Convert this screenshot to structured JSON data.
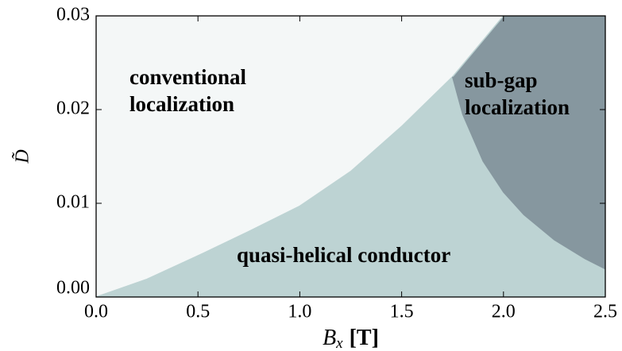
{
  "chart_data": {
    "type": "phase",
    "xlabel": {
      "base": "B",
      "sub": "x",
      "unit": "[T]"
    },
    "ylabel": "D̃",
    "xlim": [
      0,
      2.5
    ],
    "ylim": [
      0,
      0.03
    ],
    "xticks": [
      {
        "value": 0,
        "label": "0.0"
      },
      0.5,
      {
        "value": 1,
        "label": "1.0"
      },
      1.5,
      {
        "value": 2,
        "label": "2.0"
      },
      2.5
    ],
    "yticks": [
      {
        "value": 0,
        "label": "0.00"
      },
      {
        "value": 0.01,
        "label": "0.01"
      },
      {
        "value": 0.02,
        "label": "0.02"
      },
      {
        "value": 0.03,
        "label": "0.03"
      }
    ],
    "boundaries": [
      {
        "x": [
          0,
          0.25,
          0.5,
          0.75,
          1.0,
          1.25,
          1.5,
          1.75,
          2.0
        ],
        "values": [
          0,
          0.0019,
          0.0044,
          0.007,
          0.0097,
          0.0134,
          0.0182,
          0.0235,
          0.03
        ]
      },
      {
        "x": [
          1.75,
          1.8,
          1.9,
          2.0,
          2.1,
          2.25,
          2.4,
          2.5
        ],
        "values": [
          0.0235,
          0.0195,
          0.0145,
          0.0112,
          0.0088,
          0.0061,
          0.0041,
          0.003
        ]
      }
    ],
    "regions": [
      {
        "label": [
          "conventional",
          "localization"
        ],
        "color": "#f4f7f7"
      },
      {
        "label": [
          "quasi-helical conductor"
        ],
        "color": "#bdd3d3"
      },
      {
        "label": [
          "sub-gap",
          "localization"
        ],
        "color": "#86979f"
      }
    ]
  }
}
